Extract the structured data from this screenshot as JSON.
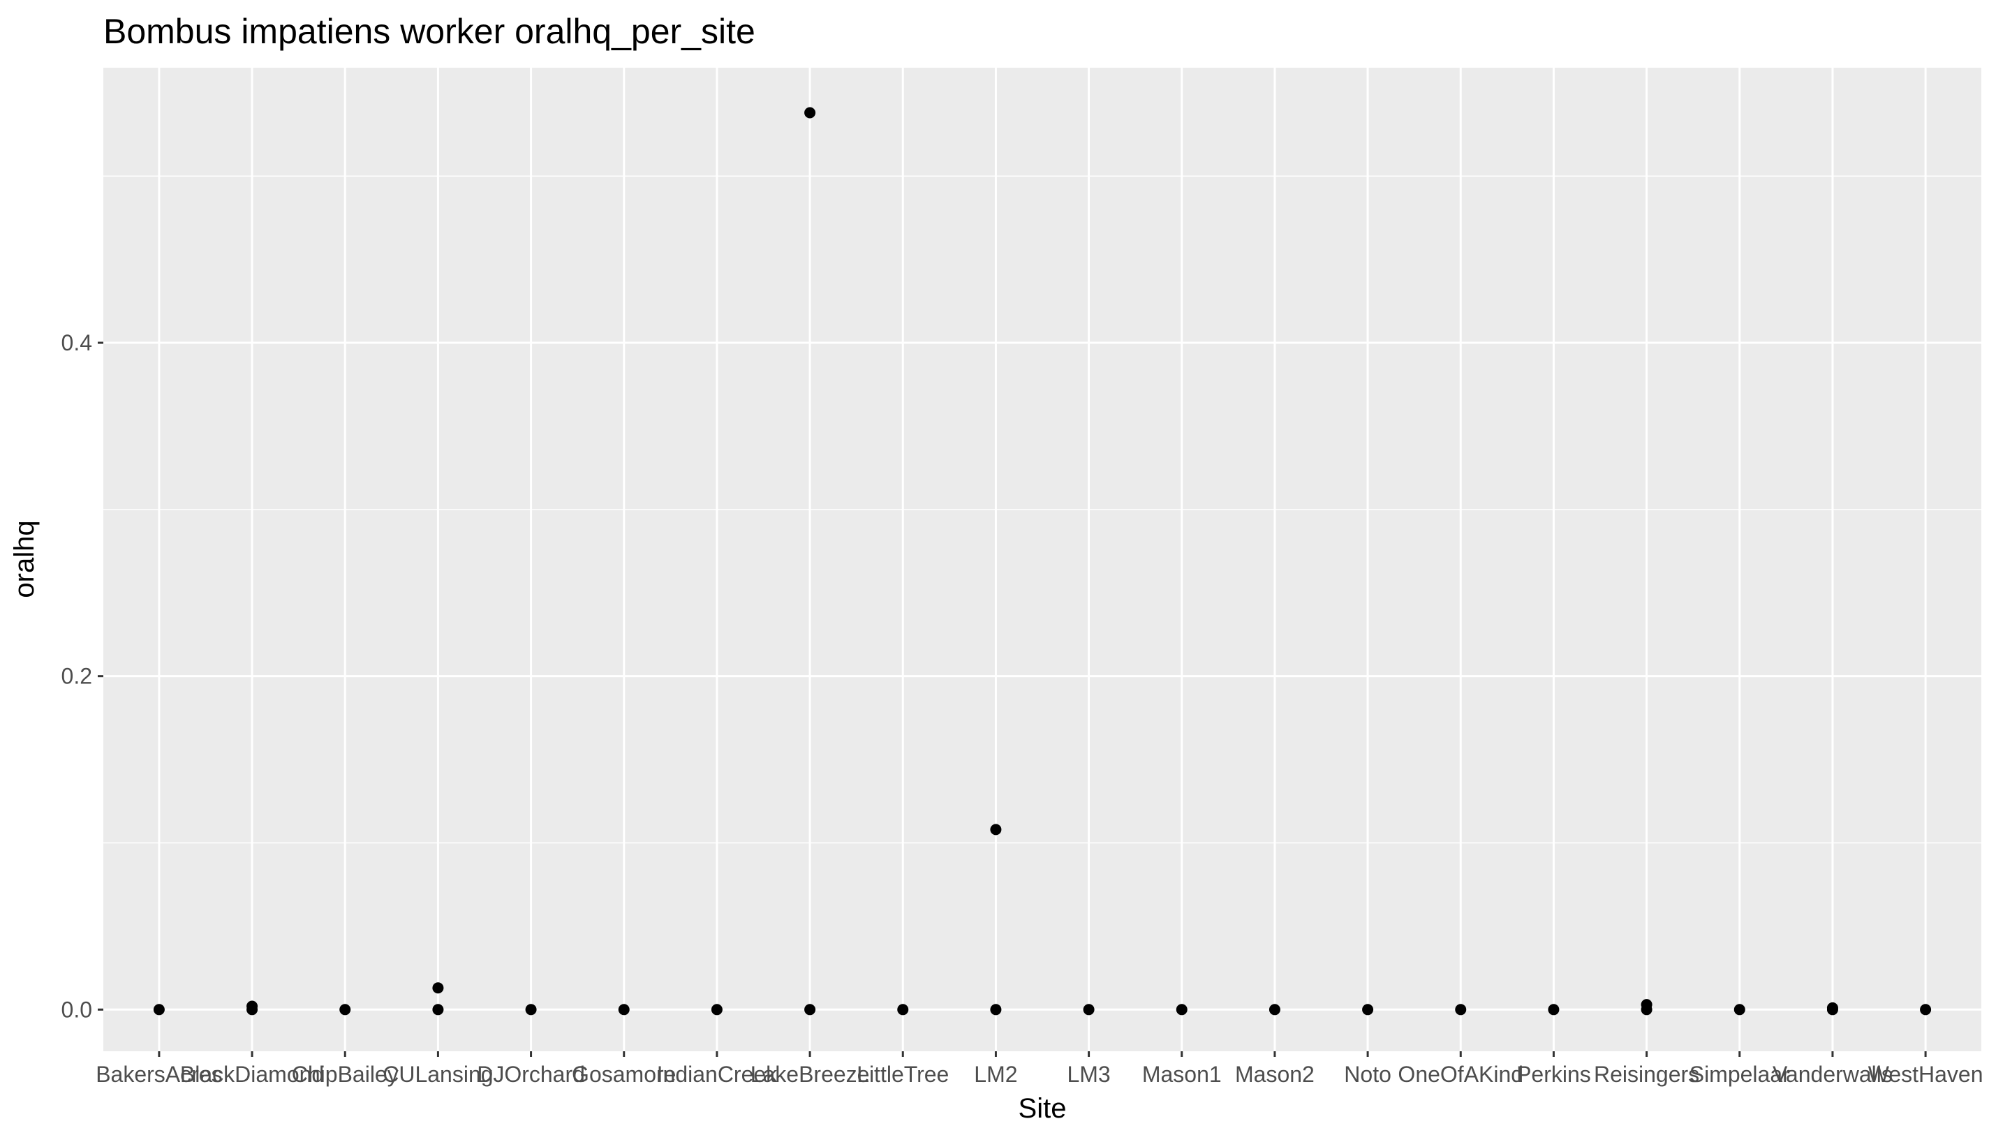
{
  "chart_data": {
    "type": "scatter",
    "title": "Bombus impatiens worker oralhq_per_site",
    "xlabel": "Site",
    "ylabel": "oralhq",
    "categories": [
      "BakersAcres",
      "BlackDiamond",
      "ChipBailey",
      "CULansing",
      "DJOrchard",
      "Gosamore",
      "IndianCreek",
      "LakeBreeze",
      "LittleTree",
      "LM2",
      "LM3",
      "Mason1",
      "Mason2",
      "Noto",
      "OneOfAKind",
      "Perkins",
      "Reisingers",
      "Simpelaar",
      "Vanderwalls",
      "WestHaven"
    ],
    "ylim": [
      -0.025,
      0.565
    ],
    "yticks": [
      0.0,
      0.2,
      0.4
    ],
    "ytick_labels": [
      "0.0",
      "0.2",
      "0.4"
    ],
    "grid": true,
    "point_color": "#000000",
    "panel_background": "#ebebeb",
    "gridline_color": "#ffffff",
    "points": [
      {
        "x": "BakersAcres",
        "y": 0.0
      },
      {
        "x": "BlackDiamond",
        "y": 0.0
      },
      {
        "x": "BlackDiamond",
        "y": 0.002
      },
      {
        "x": "ChipBailey",
        "y": 0.0
      },
      {
        "x": "CULansing",
        "y": 0.0
      },
      {
        "x": "CULansing",
        "y": 0.013
      },
      {
        "x": "DJOrchard",
        "y": 0.0
      },
      {
        "x": "Gosamore",
        "y": 0.0
      },
      {
        "x": "IndianCreek",
        "y": 0.0
      },
      {
        "x": "LakeBreeze",
        "y": 0.0
      },
      {
        "x": "LakeBreeze",
        "y": 0.538
      },
      {
        "x": "LittleTree",
        "y": 0.0
      },
      {
        "x": "LM2",
        "y": 0.0
      },
      {
        "x": "LM2",
        "y": 0.108
      },
      {
        "x": "LM3",
        "y": 0.0
      },
      {
        "x": "Mason1",
        "y": 0.0
      },
      {
        "x": "Mason2",
        "y": 0.0
      },
      {
        "x": "Noto",
        "y": 0.0
      },
      {
        "x": "OneOfAKind",
        "y": 0.0
      },
      {
        "x": "Perkins",
        "y": 0.0
      },
      {
        "x": "Reisingers",
        "y": 0.0
      },
      {
        "x": "Reisingers",
        "y": 0.003
      },
      {
        "x": "Simpelaar",
        "y": 0.0
      },
      {
        "x": "Vanderwalls",
        "y": 0.0
      },
      {
        "x": "Vanderwalls",
        "y": 0.001
      },
      {
        "x": "WestHaven",
        "y": 0.0
      }
    ]
  }
}
